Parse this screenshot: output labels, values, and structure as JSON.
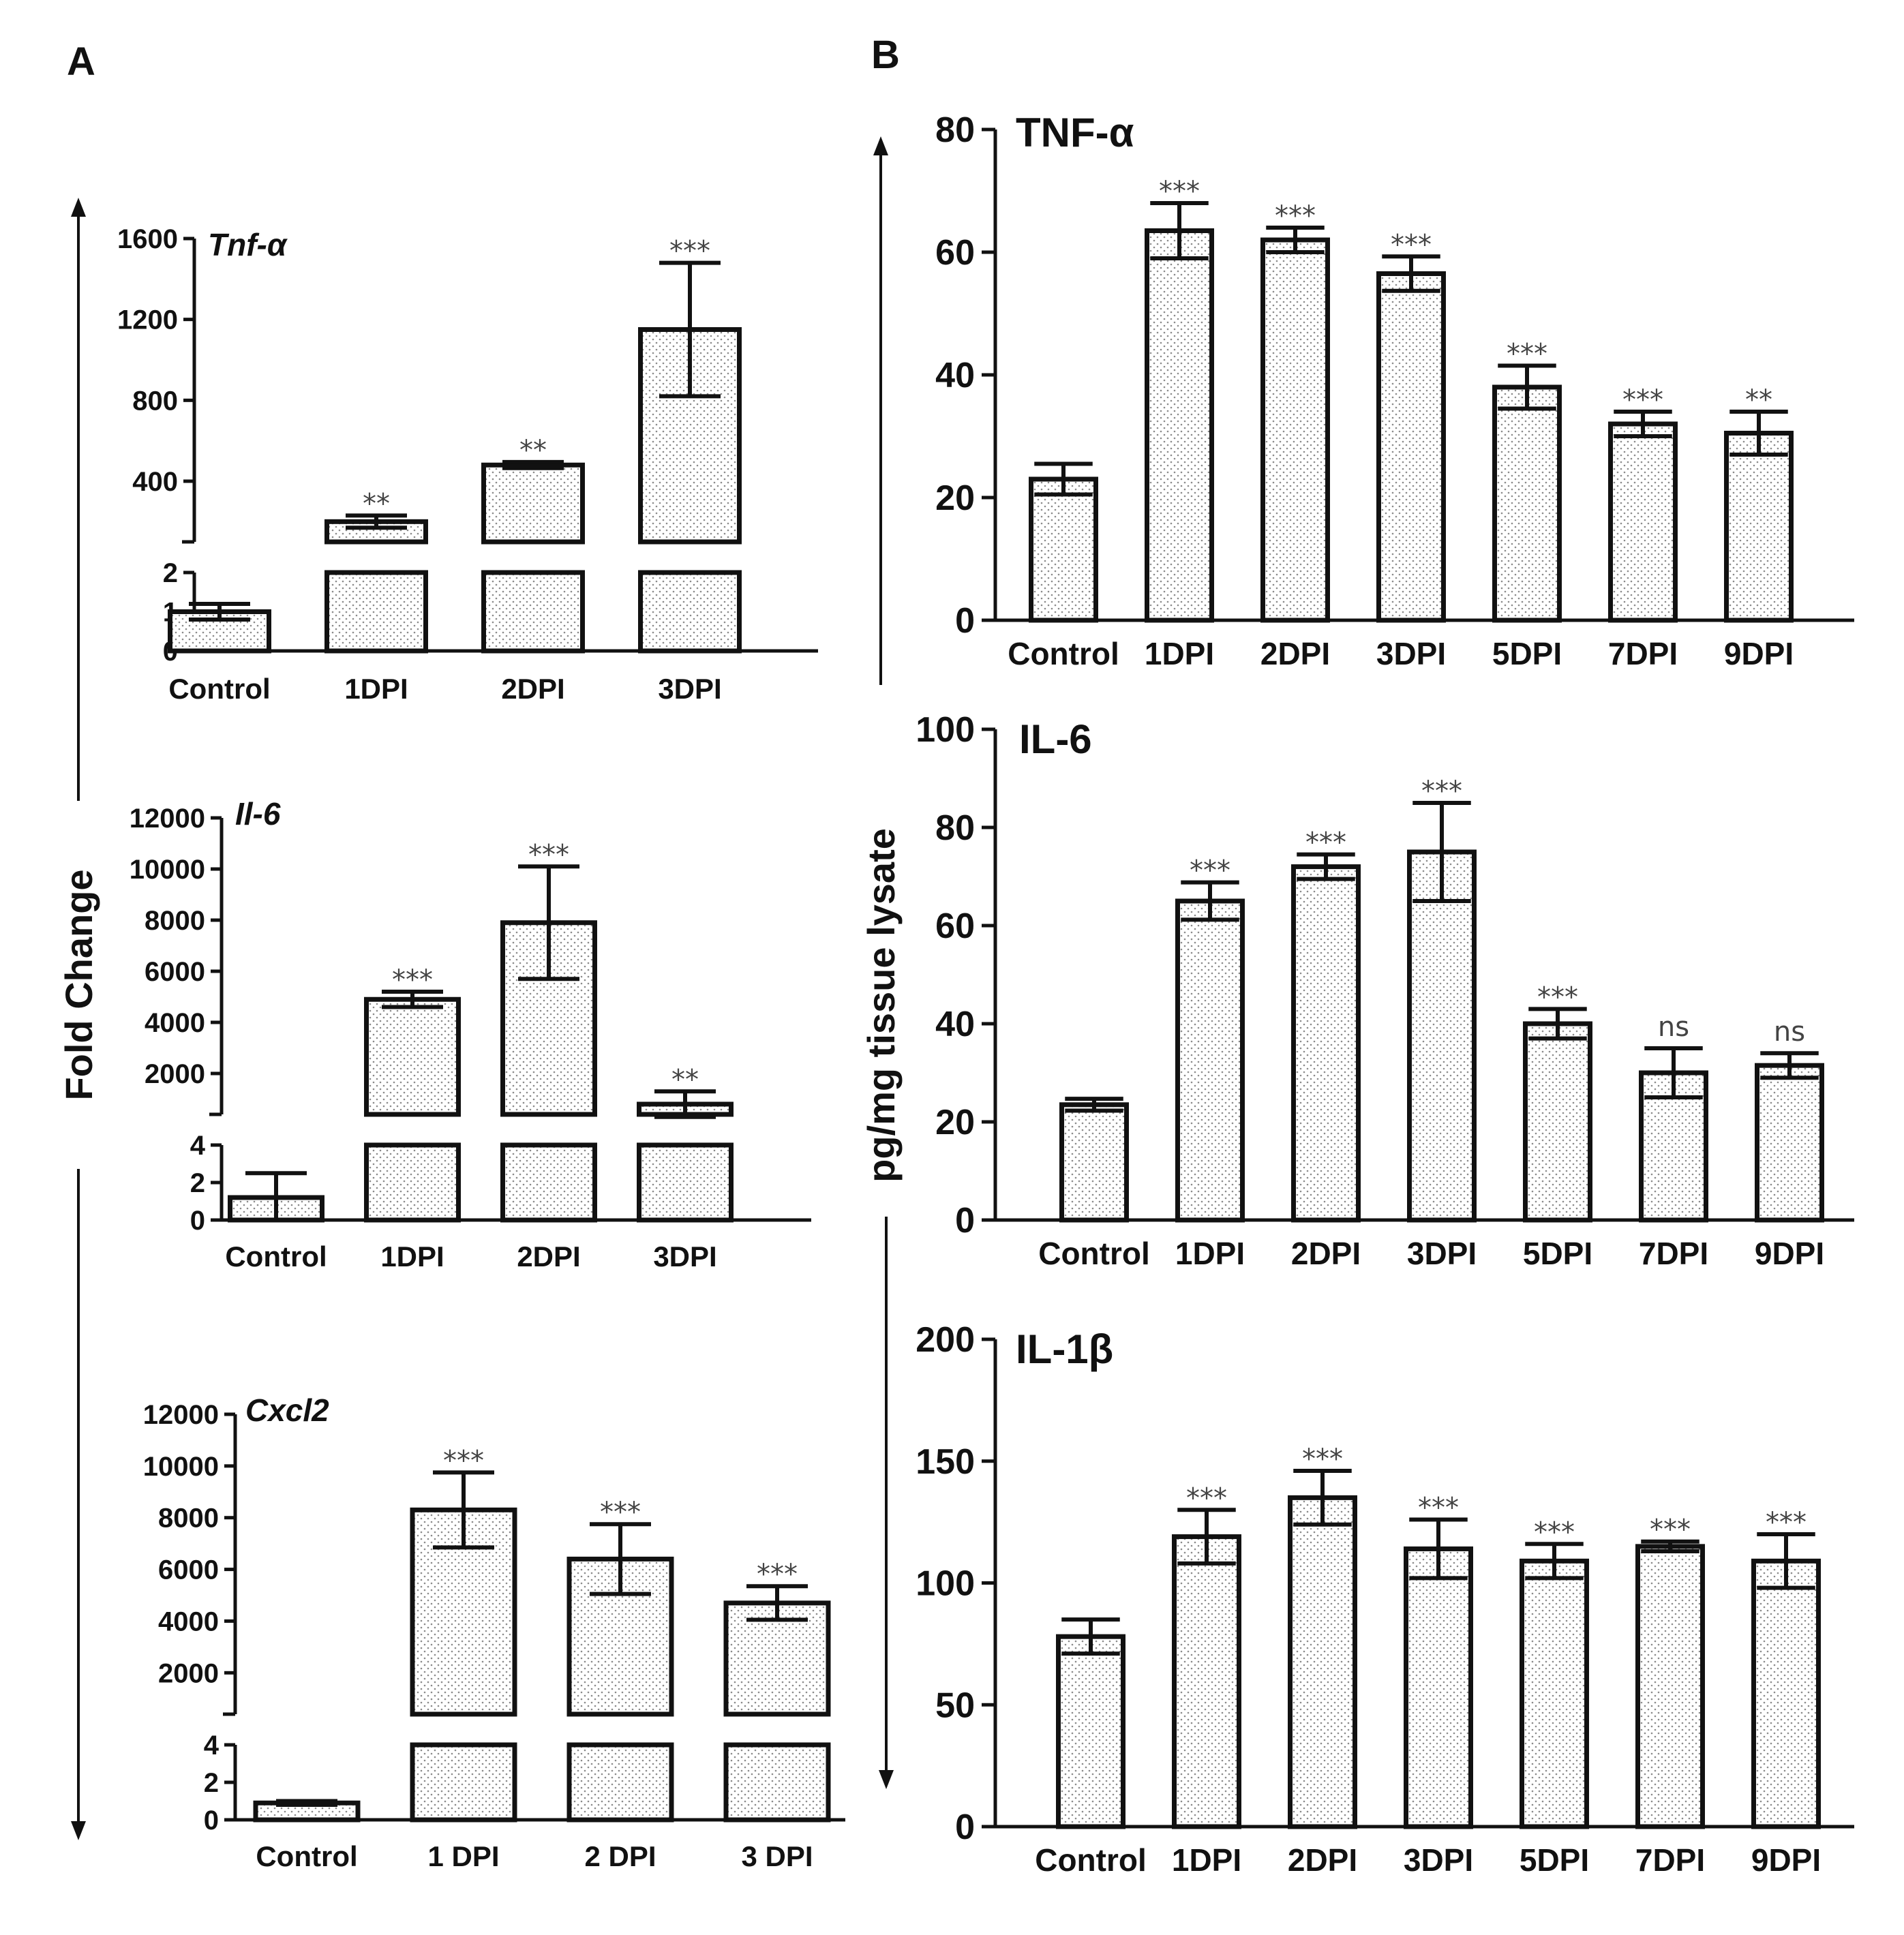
{
  "panels": {
    "a": "A",
    "b": "B"
  },
  "ylabels": {
    "fold_change": "Fold Change",
    "tissue": "pg/mg tissue lysate"
  },
  "chart_data": [
    {
      "id": "tnf_mrna",
      "panel": "A",
      "type": "bar",
      "broken_axis": true,
      "title": "Tnf-α",
      "categories": [
        "Control",
        "1DPI",
        "2DPI",
        "3DPI"
      ],
      "values": [
        1,
        200,
        480,
        1150
      ],
      "errors": [
        0.2,
        30,
        15,
        330
      ],
      "significance": [
        "",
        "**",
        "**",
        "***"
      ],
      "lower": {
        "ylim": [
          0,
          2
        ],
        "ticks": [
          0,
          1,
          2
        ]
      },
      "upper": {
        "ylim": [
          100,
          1600
        ],
        "ticks": [
          400,
          800,
          1200,
          1600
        ]
      }
    },
    {
      "id": "il6_mrna",
      "panel": "A",
      "type": "bar",
      "broken_axis": true,
      "title": "Il-6",
      "categories": [
        "Control",
        "1DPI",
        "2DPI",
        "3DPI"
      ],
      "values": [
        1.2,
        4900,
        7900,
        800
      ],
      "errors": [
        1.3,
        300,
        2200,
        500
      ],
      "significance": [
        "",
        "***",
        "***",
        "**"
      ],
      "lower": {
        "ylim": [
          0,
          4
        ],
        "ticks": [
          0,
          2,
          4
        ]
      },
      "upper": {
        "ylim": [
          400,
          12000
        ],
        "ticks": [
          2000,
          4000,
          6000,
          8000,
          10000,
          12000
        ]
      }
    },
    {
      "id": "cxcl2_mrna",
      "panel": "A",
      "type": "bar",
      "broken_axis": true,
      "title": "Cxcl2",
      "categories": [
        "Control",
        "1 DPI",
        "2 DPI",
        "3 DPI"
      ],
      "values": [
        0.9,
        8300,
        6400,
        4700
      ],
      "errors": [
        0.1,
        1450,
        1350,
        650
      ],
      "significance": [
        "",
        "***",
        "***",
        "***"
      ],
      "lower": {
        "ylim": [
          0,
          4
        ],
        "ticks": [
          0,
          2,
          4
        ]
      },
      "upper": {
        "ylim": [
          400,
          12000
        ],
        "ticks": [
          2000,
          4000,
          6000,
          8000,
          10000,
          12000
        ]
      }
    },
    {
      "id": "tnf_protein",
      "panel": "B",
      "type": "bar",
      "title": "TNF-α",
      "categories": [
        "Control",
        "1DPI",
        "2DPI",
        "3DPI",
        "5DPI",
        "7DPI",
        "9DPI"
      ],
      "values": [
        23,
        63.5,
        62,
        56.5,
        38,
        32,
        30.5
      ],
      "errors": [
        2.5,
        4.5,
        2,
        2.8,
        3.5,
        2,
        3.5
      ],
      "significance": [
        "",
        "***",
        "***",
        "***",
        "***",
        "***",
        "**"
      ],
      "ylim": [
        0,
        80
      ],
      "ticks": [
        0,
        20,
        40,
        60,
        80
      ]
    },
    {
      "id": "il6_protein",
      "panel": "B",
      "type": "bar",
      "title": "IL-6",
      "categories": [
        "Control",
        "1DPI",
        "2DPI",
        "3DPI",
        "5DPI",
        "7DPI",
        "9DPI"
      ],
      "values": [
        23.5,
        65,
        72,
        75,
        40,
        30,
        31.5
      ],
      "errors": [
        1.2,
        3.8,
        2.5,
        10,
        3,
        5,
        2.5
      ],
      "significance": [
        "",
        "***",
        "***",
        "***",
        "***",
        "ns",
        "ns"
      ],
      "ylim": [
        0,
        100
      ],
      "ticks": [
        0,
        20,
        40,
        60,
        80,
        100
      ]
    },
    {
      "id": "il1b_protein",
      "panel": "B",
      "type": "bar",
      "title": "IL-1β",
      "categories": [
        "Control",
        "1DPI",
        "2DPI",
        "3DPI",
        "5DPI",
        "7DPI",
        "9DPI"
      ],
      "values": [
        78,
        119,
        135,
        114,
        109,
        115,
        109
      ],
      "errors": [
        7,
        11,
        11,
        12,
        7,
        2,
        11
      ],
      "significance": [
        "",
        "***",
        "***",
        "***",
        "***",
        "***",
        "***"
      ],
      "ylim": [
        0,
        200
      ],
      "ticks": [
        0,
        50,
        100,
        150,
        200
      ]
    }
  ]
}
